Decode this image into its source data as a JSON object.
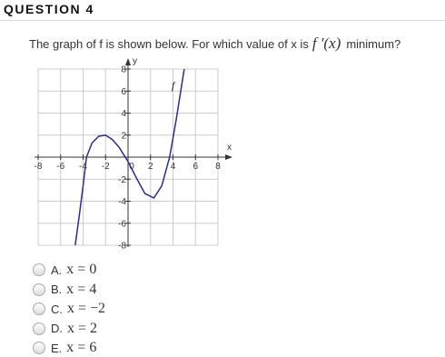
{
  "header": {
    "title": "QUESTION 4"
  },
  "question": {
    "text": "The graph of f is shown below. For which value of x is",
    "math": "f '(x)",
    "text_after": "minimum?"
  },
  "graph": {
    "type": "line",
    "curve_label": "f",
    "x_label": "x",
    "y_label": "y",
    "x": [
      -4.7,
      -4.3,
      -4,
      -3.7,
      -3.2,
      -2.6,
      -2,
      -1.4,
      -0.8,
      0,
      0.8,
      1.5,
      2.3,
      3,
      3.7,
      4.3,
      5
    ],
    "values": [
      -8,
      -5,
      -2.6,
      0,
      1.3,
      1.9,
      2,
      1.6,
      0.9,
      -0.4,
      -2,
      -3.3,
      -3.7,
      -2.6,
      0,
      3.5,
      8
    ],
    "color": "#2b2d8c",
    "xlim": [
      -8,
      8
    ],
    "ylim": [
      -8,
      8
    ],
    "xticks": [
      -8,
      -6,
      -4,
      -2,
      0,
      2,
      4,
      6,
      8
    ],
    "yticks": [
      -8,
      -6,
      -4,
      -2,
      2,
      4,
      6,
      8
    ],
    "grid": true
  },
  "options": [
    {
      "letter": "A.",
      "answer": "x = 0"
    },
    {
      "letter": "B.",
      "answer": "x = 4"
    },
    {
      "letter": "C.",
      "answer": "x = −2"
    },
    {
      "letter": "D.",
      "answer": "x = 2"
    },
    {
      "letter": "E.",
      "answer": "x = 6"
    }
  ]
}
